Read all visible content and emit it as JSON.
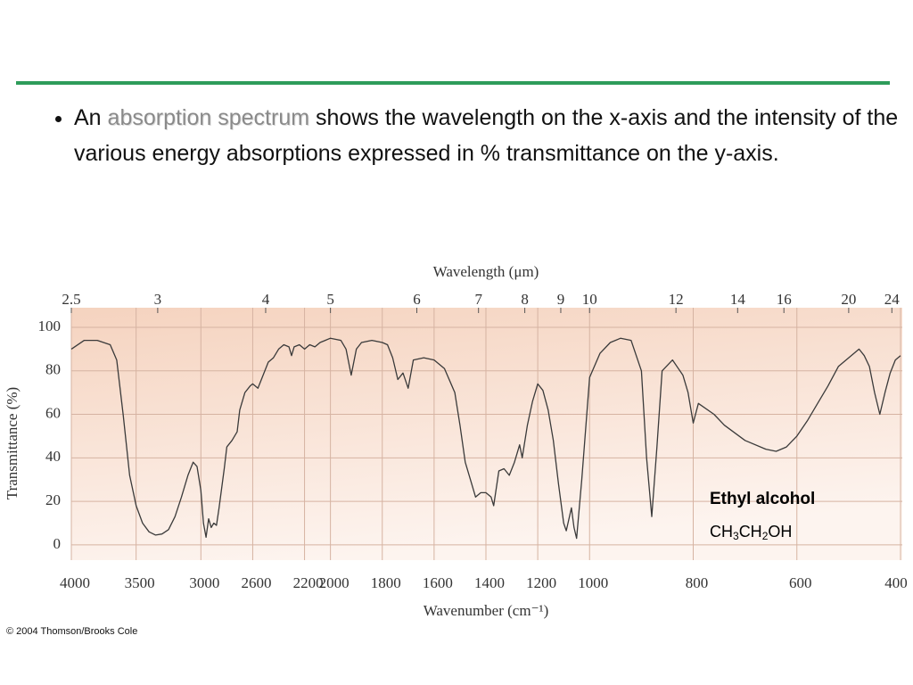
{
  "slide": {
    "bullet": {
      "before": "An",
      "highlight": "absorption spectrum",
      "after": "shows the wavelength on the x-axis and the intensity of the various energy absorptions expressed in % transmittance on the y-axis."
    }
  },
  "chart_data": {
    "type": "line",
    "x2_label": "Wavelength (μm)",
    "xlabel": "Wavenumber (cm⁻¹)",
    "ylabel": "Transmittance (%)",
    "annotation": "Ethyl alcohol",
    "formula": "CH3CH2OH",
    "x": [
      4000,
      3900,
      3800,
      3700,
      3650,
      3600,
      3550,
      3500,
      3450,
      3400,
      3350,
      3300,
      3250,
      3200,
      3150,
      3100,
      3060,
      3030,
      3000,
      2980,
      2960,
      2940,
      2920,
      2900,
      2880,
      2860,
      2820,
      2800,
      2760,
      2720,
      2700,
      2660,
      2620,
      2600,
      2560,
      2520,
      2480,
      2440,
      2400,
      2360,
      2320,
      2300,
      2280,
      2240,
      2200,
      2160,
      2120,
      2080,
      2040,
      2000,
      1960,
      1940,
      1920,
      1900,
      1880,
      1840,
      1800,
      1780,
      1760,
      1740,
      1720,
      1700,
      1680,
      1640,
      1600,
      1560,
      1520,
      1500,
      1480,
      1460,
      1440,
      1420,
      1400,
      1380,
      1370,
      1350,
      1330,
      1310,
      1290,
      1270,
      1260,
      1240,
      1220,
      1200,
      1180,
      1160,
      1140,
      1120,
      1100,
      1090,
      1070,
      1060,
      1050,
      1030,
      1000,
      980,
      960,
      940,
      920,
      900,
      890,
      880,
      870,
      860,
      840,
      820,
      810,
      800,
      790,
      760,
      740,
      700,
      660,
      640,
      620,
      600,
      580,
      560,
      540,
      520,
      500,
      480,
      470,
      460,
      450,
      440,
      430,
      420,
      410,
      400
    ],
    "series": [
      {
        "color": "#3a3a3a",
        "values": [
          90,
          94,
          94,
          92,
          85,
          60,
          32,
          18,
          10,
          6,
          4.5,
          5,
          7,
          13,
          22,
          32,
          38,
          36,
          25,
          10,
          3.5,
          12,
          8,
          10,
          9,
          17,
          35,
          45,
          48,
          52,
          62,
          70,
          73,
          74,
          72,
          78,
          84,
          86,
          90,
          92,
          91,
          87,
          91,
          92,
          90,
          92,
          91,
          93,
          94,
          95,
          94,
          90,
          78,
          90,
          93,
          94,
          93,
          92,
          86,
          76,
          79,
          72,
          85,
          86,
          85,
          81,
          70,
          55,
          38,
          30,
          22,
          24,
          24,
          22,
          18,
          34,
          35,
          32,
          38,
          46,
          40,
          55,
          66,
          74,
          71,
          62,
          48,
          28,
          10,
          6.5,
          17,
          8,
          3,
          30,
          77,
          88,
          93,
          95,
          94,
          80,
          40,
          13,
          45,
          80,
          85,
          78,
          70,
          56,
          65,
          60,
          55,
          48,
          44,
          43,
          45,
          50,
          57,
          65,
          73,
          82,
          86,
          90,
          87,
          82,
          70,
          60,
          70,
          79,
          85,
          87
        ]
      }
    ],
    "xlim": [
      4000,
      400
    ],
    "xbreaks": [
      2000,
      1000
    ],
    "xticks": [
      4000,
      3500,
      3000,
      2600,
      2200,
      2000,
      1800,
      1600,
      1400,
      1200,
      1000,
      800,
      600,
      400
    ],
    "x2ticks": [
      {
        "value": 4000,
        "label": "2.5"
      },
      {
        "value": 3333.3,
        "label": "3"
      },
      {
        "value": 2500,
        "label": "4"
      },
      {
        "value": 2000,
        "label": "5"
      },
      {
        "value": 1666.7,
        "label": "6"
      },
      {
        "value": 1428.6,
        "label": "7"
      },
      {
        "value": 1250,
        "label": "8"
      },
      {
        "value": 1111.1,
        "label": "9"
      },
      {
        "value": 1000,
        "label": "10"
      },
      {
        "value": 833.3,
        "label": "12"
      },
      {
        "value": 714.3,
        "label": "14"
      },
      {
        "value": 625,
        "label": "16"
      },
      {
        "value": 500,
        "label": "20"
      },
      {
        "value": 416.7,
        "label": "24"
      }
    ],
    "ylim": [
      -7,
      109
    ],
    "yticks": [
      0,
      20,
      40,
      60,
      80,
      100
    ],
    "grid": true,
    "background": [
      "#f5d3bf",
      "#fdf4ef"
    ]
  },
  "footer": {
    "credit": "© 2004 Thomson/Brooks Cole"
  }
}
